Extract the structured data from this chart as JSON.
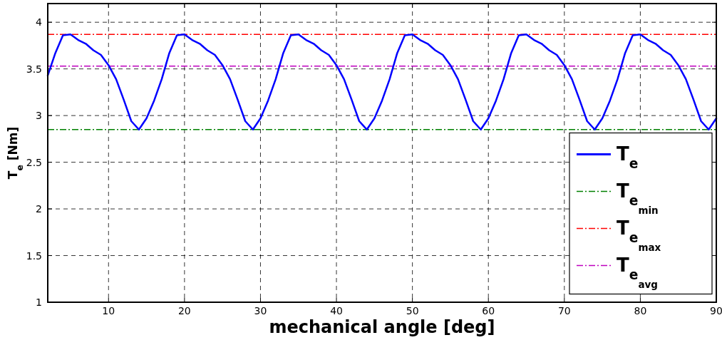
{
  "chart_data": {
    "type": "line",
    "xlabel": "mechanical angle [deg]",
    "ylabel": "T$_{e}$ [Nm]",
    "x": [
      2,
      3,
      4,
      5,
      6,
      7,
      8,
      9,
      10,
      11,
      12,
      13,
      14,
      15,
      16,
      17,
      18,
      19,
      20,
      21,
      22,
      23,
      24,
      25,
      26,
      27,
      28,
      29,
      30,
      31,
      32,
      33,
      34,
      35,
      36,
      37,
      38,
      39,
      40,
      41,
      42,
      43,
      44,
      45,
      46,
      47,
      48,
      49,
      50,
      51,
      52,
      53,
      54,
      55,
      56,
      57,
      58,
      59,
      60,
      61,
      62,
      63,
      64,
      65,
      66,
      67,
      68,
      69,
      70,
      71,
      72,
      73,
      74,
      75,
      76,
      77,
      78,
      79,
      80,
      81,
      82,
      83,
      84,
      85,
      86,
      87,
      88,
      89,
      90
    ],
    "series": [
      {
        "name": "T$_{e}$",
        "color": "#0000ff",
        "values": [
          3.43,
          3.67,
          3.86,
          3.87,
          3.81,
          3.77,
          3.7,
          3.65,
          3.54,
          3.39,
          3.17,
          2.94,
          2.85,
          2.97,
          3.16,
          3.39,
          3.67,
          3.86,
          3.87,
          3.81,
          3.77,
          3.7,
          3.65,
          3.54,
          3.39,
          3.17,
          2.94,
          2.85,
          2.97,
          3.16,
          3.39,
          3.67,
          3.86,
          3.87,
          3.81,
          3.77,
          3.7,
          3.65,
          3.54,
          3.39,
          3.17,
          2.94,
          2.85,
          2.97,
          3.16,
          3.39,
          3.67,
          3.86,
          3.87,
          3.81,
          3.77,
          3.7,
          3.65,
          3.54,
          3.39,
          3.17,
          2.94,
          2.85,
          2.97,
          3.16,
          3.39,
          3.67,
          3.86,
          3.87,
          3.81,
          3.77,
          3.7,
          3.65,
          3.54,
          3.39,
          3.17,
          2.94,
          2.85,
          2.97,
          3.16,
          3.39,
          3.67,
          3.86,
          3.87,
          3.81,
          3.77,
          3.7,
          3.65,
          3.54,
          3.39,
          3.17,
          2.94,
          2.85,
          2.97
        ]
      }
    ],
    "ref_lines": [
      {
        "axis": "y",
        "value": 2.85,
        "label": "T$_{e}$$_{min}$",
        "color": "#008000",
        "line_style": "dashed"
      },
      {
        "axis": "y",
        "value": 3.87,
        "label": "T$_{e}$$_{max}$",
        "color": "#ff0000",
        "line_style": "dashed"
      },
      {
        "axis": "y",
        "value": 3.53,
        "label": "T$_{e}$$_{avg}$",
        "color": "#bf00bf",
        "line_style": "dashed"
      }
    ],
    "xlim": [
      2,
      90
    ],
    "xticks": [
      10,
      20,
      30,
      40,
      50,
      60,
      70,
      80,
      90
    ],
    "ylim": [
      1,
      4.2
    ],
    "yticks": [
      1,
      1.5,
      2,
      2.5,
      3,
      3.5,
      4
    ],
    "grid": true,
    "legend": "right",
    "line_style": "solid",
    "marker": "none"
  }
}
